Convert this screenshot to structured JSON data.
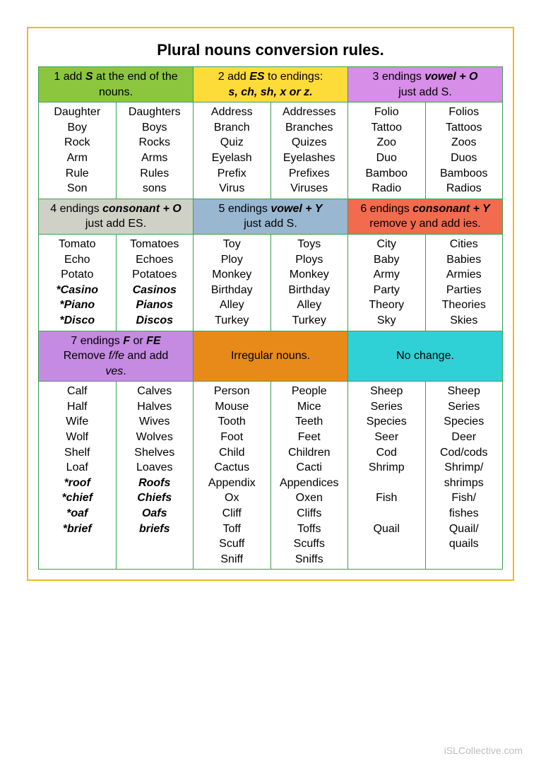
{
  "title": "Plural nouns conversion rules.",
  "footer": "iSLCollective.com",
  "colors": {
    "h1": "#8cc63f",
    "h2": "#fddc3a",
    "h3": "#d68ee8",
    "h4": "#cfd1c6",
    "h5": "#99b7d1",
    "h6": "#f26b4e",
    "h7": "#c58ae2",
    "h8": "#e88a1a",
    "h9": "#2fd1d6",
    "border": "#3aa050",
    "outer": "#f3b816"
  },
  "headers": {
    "h1": {
      "pre": "1 add ",
      "em": "S",
      "post": " at the end of the nouns."
    },
    "h2": {
      "pre": "2 add ",
      "em": "ES",
      "mid": " to endings: ",
      "em2": "s, ch, sh, x or z."
    },
    "h3": {
      "pre": "3 endings ",
      "em": "vowel + O",
      "post": " just add S."
    },
    "h4": {
      "pre": "4 endings ",
      "em": "consonant + O",
      "post": " just add ES."
    },
    "h5": {
      "pre": "5 endings ",
      "em": "vowel + Y",
      "post": " just add S."
    },
    "h6": {
      "pre": "6 endings ",
      "em": "consonant + Y",
      "post": " remove y and add ies."
    },
    "h7": {
      "pre": "7 endings ",
      "em": "F",
      "mid": " or ",
      "em2": "FE",
      "post2a": " Remove ",
      "em3": "f/fe",
      "post2b": " and add ",
      "em4": "ves",
      "post2c": "."
    },
    "h8": {
      "text": "Irregular nouns."
    },
    "h9": {
      "text": "No change."
    }
  },
  "rows1": [
    [
      "Daughter",
      "Daughters",
      "Address",
      "Addresses",
      "Folio",
      "Folios"
    ],
    [
      "Boy",
      "Boys",
      "Branch",
      "Branches",
      "Tattoo",
      "Tattoos"
    ],
    [
      "Rock",
      "Rocks",
      "Quiz",
      "Quizes",
      "Zoo",
      "Zoos"
    ],
    [
      "Arm",
      "Arms",
      "Eyelash",
      "Eyelashes",
      "Duo",
      "Duos"
    ],
    [
      "Rule",
      "Rules",
      "Prefix",
      "Prefixes",
      "Bamboo",
      "Bamboos"
    ],
    [
      "Son",
      "sons",
      "Virus",
      "Viruses",
      "Radio",
      "Radios"
    ]
  ],
  "rows2": [
    [
      {
        "t": "Tomato"
      },
      {
        "t": "Tomatoes"
      },
      {
        "t": "Toy"
      },
      {
        "t": "Toys"
      },
      {
        "t": "City"
      },
      {
        "t": "Cities"
      }
    ],
    [
      {
        "t": "Echo"
      },
      {
        "t": "Echoes"
      },
      {
        "t": "Ploy"
      },
      {
        "t": "Ploys"
      },
      {
        "t": "Baby"
      },
      {
        "t": "Babies"
      }
    ],
    [
      {
        "t": "Potato"
      },
      {
        "t": "Potatoes"
      },
      {
        "t": "Monkey"
      },
      {
        "t": "Monkey"
      },
      {
        "t": "Army"
      },
      {
        "t": "Armies"
      }
    ],
    [
      {
        "t": "*Casino",
        "b": true
      },
      {
        "t": "Casinos",
        "b": true
      },
      {
        "t": "Birthday"
      },
      {
        "t": "Birthday"
      },
      {
        "t": "Party"
      },
      {
        "t": "Parties"
      }
    ],
    [
      {
        "t": "*Piano",
        "b": true
      },
      {
        "t": "Pianos",
        "b": true
      },
      {
        "t": "Alley"
      },
      {
        "t": "Alley"
      },
      {
        "t": "Theory"
      },
      {
        "t": "Theories"
      }
    ],
    [
      {
        "t": "*Disco",
        "b": true
      },
      {
        "t": "Discos",
        "b": true
      },
      {
        "t": "Turkey"
      },
      {
        "t": "Turkey"
      },
      {
        "t": "Sky"
      },
      {
        "t": "Skies"
      }
    ]
  ],
  "rows3": [
    [
      {
        "t": "Calf"
      },
      {
        "t": "Calves"
      },
      {
        "t": "Person"
      },
      {
        "t": "People"
      },
      {
        "t": "Sheep"
      },
      {
        "t": "Sheep"
      }
    ],
    [
      {
        "t": "Half"
      },
      {
        "t": "Halves"
      },
      {
        "t": "Mouse"
      },
      {
        "t": "Mice"
      },
      {
        "t": "Series"
      },
      {
        "t": "Series"
      }
    ],
    [
      {
        "t": "Wife"
      },
      {
        "t": "Wives"
      },
      {
        "t": "Tooth"
      },
      {
        "t": "Teeth"
      },
      {
        "t": "Species"
      },
      {
        "t": "Species"
      }
    ],
    [
      {
        "t": "Wolf"
      },
      {
        "t": "Wolves"
      },
      {
        "t": "Foot"
      },
      {
        "t": "Feet"
      },
      {
        "t": "Seer"
      },
      {
        "t": "Deer"
      }
    ],
    [
      {
        "t": "Shelf"
      },
      {
        "t": "Shelves"
      },
      {
        "t": "Child"
      },
      {
        "t": "Children"
      },
      {
        "t": "Cod"
      },
      {
        "t": "Cod/cods"
      }
    ],
    [
      {
        "t": "Loaf"
      },
      {
        "t": "Loaves"
      },
      {
        "t": "Cactus"
      },
      {
        "t": "Cacti"
      },
      {
        "t": "Shrimp"
      },
      {
        "t": "Shrimp/"
      }
    ],
    [
      {
        "t": "*roof",
        "b": true
      },
      {
        "t": "Roofs",
        "b": true
      },
      {
        "t": "Appendix"
      },
      {
        "t": "Appendices"
      },
      {
        "t": ""
      },
      {
        "t": "shrimps"
      }
    ],
    [
      {
        "t": "*chief",
        "b": true
      },
      {
        "t": "Chiefs",
        "b": true
      },
      {
        "t": "Ox"
      },
      {
        "t": "Oxen"
      },
      {
        "t": "Fish"
      },
      {
        "t": "Fish/"
      }
    ],
    [
      {
        "t": "*oaf",
        "b": true
      },
      {
        "t": "Oafs",
        "b": true
      },
      {
        "t": "Cliff"
      },
      {
        "t": "Cliffs"
      },
      {
        "t": ""
      },
      {
        "t": "fishes"
      }
    ],
    [
      {
        "t": "*brief",
        "b": true
      },
      {
        "t": "briefs",
        "b": true
      },
      {
        "t": "Toff"
      },
      {
        "t": "Toffs"
      },
      {
        "t": "Quail"
      },
      {
        "t": "Quail/"
      }
    ],
    [
      {
        "t": ""
      },
      {
        "t": ""
      },
      {
        "t": "Scuff"
      },
      {
        "t": "Scuffs"
      },
      {
        "t": ""
      },
      {
        "t": "quails"
      }
    ],
    [
      {
        "t": ""
      },
      {
        "t": ""
      },
      {
        "t": "Sniff"
      },
      {
        "t": "Sniffs"
      },
      {
        "t": ""
      },
      {
        "t": ""
      }
    ]
  ]
}
